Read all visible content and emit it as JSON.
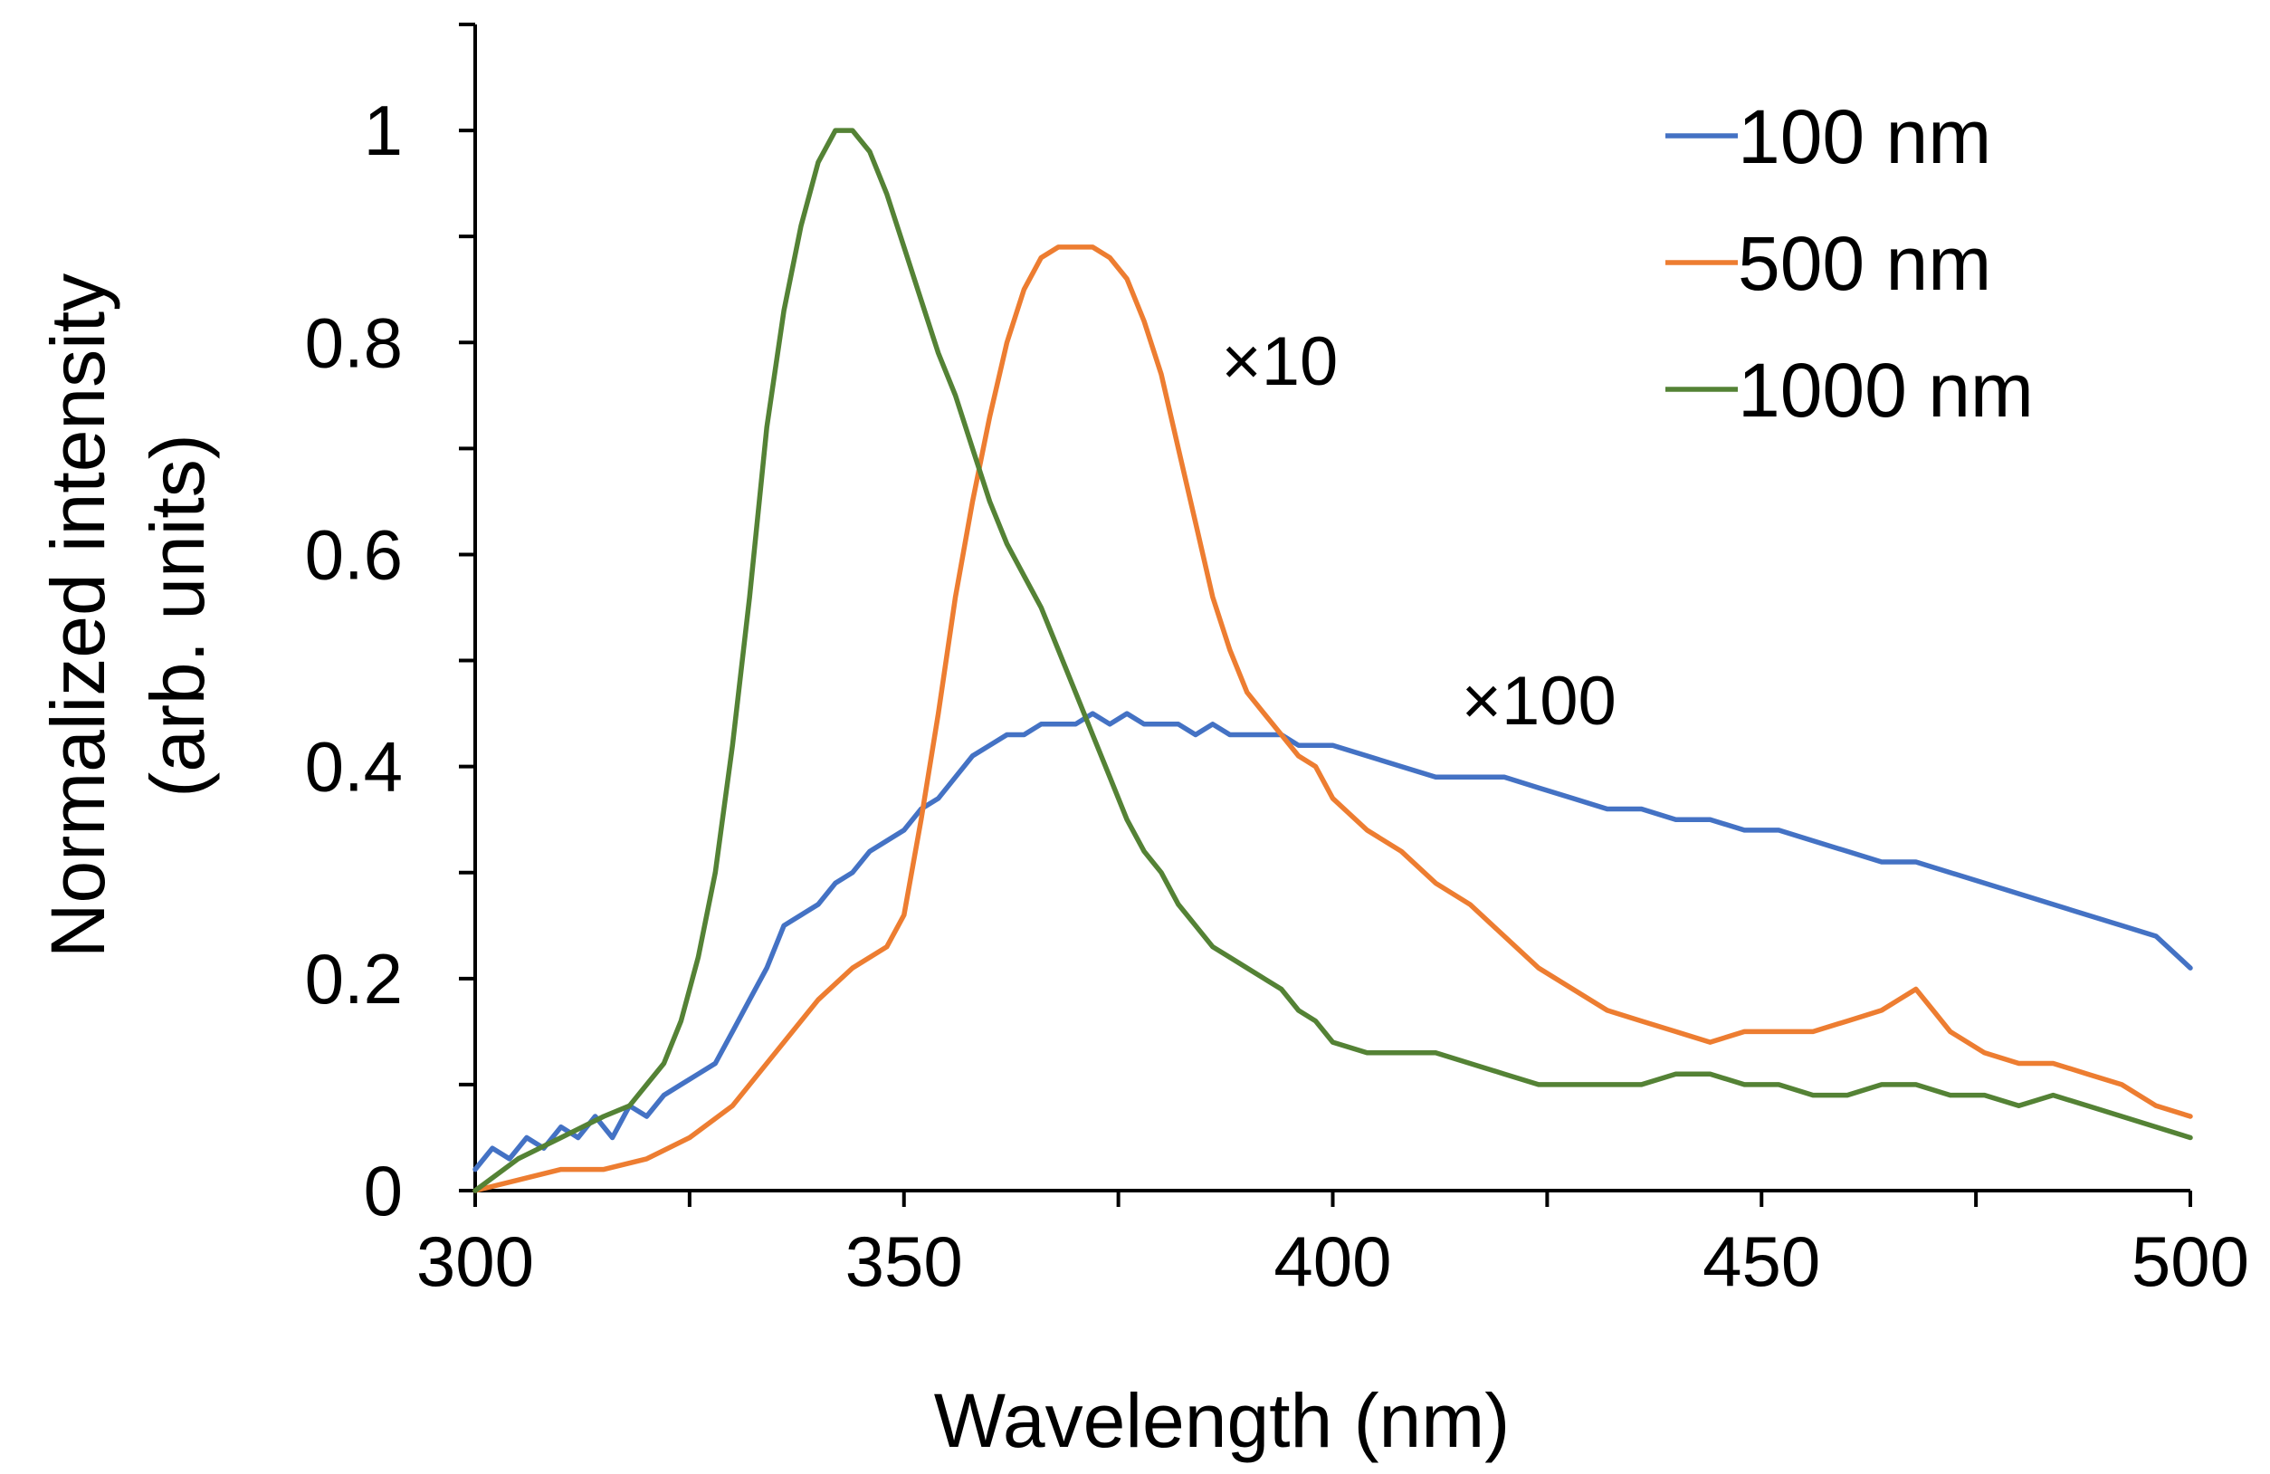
{
  "chart_data": {
    "type": "line",
    "title": "",
    "xlabel": "Wavelength (nm)",
    "ylabel": "Normalized intensity",
    "ylabel_units": "(arb. units)",
    "xlim": [
      300,
      500
    ],
    "ylim": [
      0,
      1.1
    ],
    "xticks": [
      300,
      350,
      400,
      450,
      500
    ],
    "xtick_labels": [
      "300",
      "350",
      "400",
      "450",
      "500"
    ],
    "yticks": [
      0,
      0.2,
      0.4,
      0.6,
      0.8,
      1
    ],
    "ytick_labels": [
      "0",
      "0.2",
      "0.4",
      "0.6",
      "0.8",
      "1"
    ],
    "grid": false,
    "legend_position": "top-right",
    "series": [
      {
        "name": "100 nm",
        "color": "#4472c4",
        "x": [
          300,
          302,
          304,
          306,
          308,
          310,
          312,
          314,
          316,
          318,
          320,
          322,
          324,
          326,
          328,
          330,
          332,
          334,
          336,
          338,
          340,
          342,
          344,
          346,
          348,
          350,
          352,
          354,
          356,
          358,
          360,
          362,
          364,
          366,
          368,
          370,
          372,
          374,
          376,
          378,
          380,
          382,
          384,
          386,
          388,
          390,
          392,
          394,
          396,
          398,
          400,
          404,
          408,
          412,
          416,
          420,
          424,
          428,
          432,
          436,
          440,
          444,
          448,
          452,
          456,
          460,
          464,
          468,
          472,
          476,
          480,
          484,
          488,
          492,
          496,
          500
        ],
        "y": [
          0.02,
          0.04,
          0.03,
          0.05,
          0.04,
          0.06,
          0.05,
          0.07,
          0.05,
          0.08,
          0.07,
          0.09,
          0.1,
          0.11,
          0.12,
          0.15,
          0.18,
          0.21,
          0.25,
          0.26,
          0.27,
          0.29,
          0.3,
          0.32,
          0.33,
          0.34,
          0.36,
          0.37,
          0.39,
          0.41,
          0.42,
          0.43,
          0.43,
          0.44,
          0.44,
          0.44,
          0.45,
          0.44,
          0.45,
          0.44,
          0.44,
          0.44,
          0.43,
          0.44,
          0.43,
          0.43,
          0.43,
          0.43,
          0.42,
          0.42,
          0.42,
          0.41,
          0.4,
          0.39,
          0.39,
          0.39,
          0.38,
          0.37,
          0.36,
          0.36,
          0.35,
          0.35,
          0.34,
          0.34,
          0.33,
          0.32,
          0.31,
          0.31,
          0.3,
          0.29,
          0.28,
          0.27,
          0.26,
          0.25,
          0.24,
          0.21
        ]
      },
      {
        "name": "500 nm",
        "color": "#ed7d31",
        "x": [
          300,
          305,
          310,
          315,
          320,
          325,
          330,
          335,
          340,
          344,
          348,
          350,
          352,
          354,
          356,
          358,
          360,
          362,
          364,
          366,
          368,
          370,
          372,
          374,
          376,
          378,
          380,
          382,
          384,
          386,
          388,
          390,
          392,
          394,
          396,
          398,
          400,
          404,
          408,
          412,
          416,
          420,
          424,
          428,
          432,
          436,
          440,
          444,
          448,
          452,
          456,
          460,
          464,
          466,
          468,
          470,
          472,
          476,
          480,
          484,
          488,
          492,
          496,
          500
        ],
        "y": [
          0.0,
          0.01,
          0.02,
          0.02,
          0.03,
          0.05,
          0.08,
          0.13,
          0.18,
          0.21,
          0.23,
          0.26,
          0.35,
          0.45,
          0.56,
          0.65,
          0.73,
          0.8,
          0.85,
          0.88,
          0.89,
          0.89,
          0.89,
          0.88,
          0.86,
          0.82,
          0.77,
          0.7,
          0.63,
          0.56,
          0.51,
          0.47,
          0.45,
          0.43,
          0.41,
          0.4,
          0.37,
          0.34,
          0.32,
          0.29,
          0.27,
          0.24,
          0.21,
          0.19,
          0.17,
          0.16,
          0.15,
          0.14,
          0.15,
          0.15,
          0.15,
          0.16,
          0.17,
          0.18,
          0.19,
          0.17,
          0.15,
          0.13,
          0.12,
          0.12,
          0.11,
          0.1,
          0.08,
          0.07
        ]
      },
      {
        "name": "1000 nm",
        "color": "#548235",
        "x": [
          300,
          305,
          310,
          315,
          318,
          320,
          322,
          324,
          326,
          328,
          330,
          332,
          334,
          336,
          338,
          340,
          342,
          344,
          346,
          348,
          350,
          352,
          354,
          356,
          358,
          360,
          362,
          364,
          366,
          368,
          370,
          372,
          374,
          376,
          378,
          380,
          382,
          384,
          386,
          388,
          390,
          392,
          394,
          396,
          398,
          400,
          404,
          408,
          412,
          416,
          420,
          424,
          428,
          432,
          436,
          440,
          444,
          448,
          452,
          456,
          460,
          464,
          468,
          472,
          476,
          480,
          484,
          488,
          492,
          496,
          500
        ],
        "y": [
          0.0,
          0.03,
          0.05,
          0.07,
          0.08,
          0.1,
          0.12,
          0.16,
          0.22,
          0.3,
          0.42,
          0.56,
          0.72,
          0.83,
          0.91,
          0.97,
          1.0,
          1.0,
          0.98,
          0.94,
          0.89,
          0.84,
          0.79,
          0.75,
          0.7,
          0.65,
          0.61,
          0.58,
          0.55,
          0.51,
          0.47,
          0.43,
          0.39,
          0.35,
          0.32,
          0.3,
          0.27,
          0.25,
          0.23,
          0.22,
          0.21,
          0.2,
          0.19,
          0.17,
          0.16,
          0.14,
          0.13,
          0.13,
          0.13,
          0.12,
          0.11,
          0.1,
          0.1,
          0.1,
          0.1,
          0.11,
          0.11,
          0.1,
          0.1,
          0.09,
          0.09,
          0.1,
          0.1,
          0.09,
          0.09,
          0.08,
          0.09,
          0.08,
          0.07,
          0.06,
          0.05
        ]
      }
    ],
    "annotations": [
      {
        "text": "×10",
        "x": 387,
        "y": 0.76
      },
      {
        "text": "×100",
        "x": 415,
        "y": 0.44
      }
    ]
  }
}
